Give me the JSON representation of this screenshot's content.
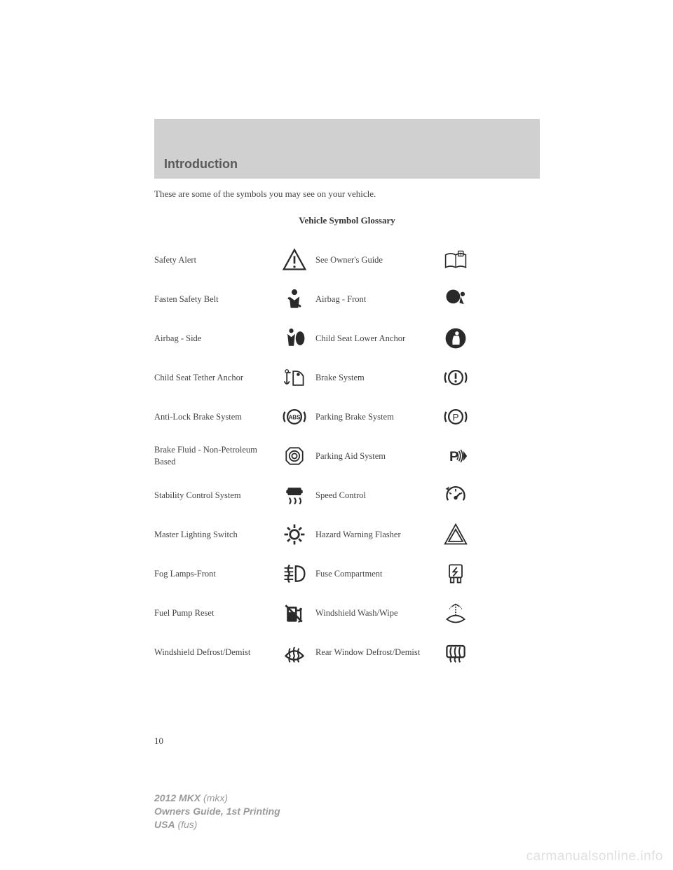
{
  "section_title": "Introduction",
  "intro_text": "These are some of the symbols you may see on your vehicle.",
  "glossary_title": "Vehicle Symbol Glossary",
  "page_number": "10",
  "footer": {
    "model": "2012 MKX",
    "model_code": "(mkx)",
    "line2": "Owners Guide, 1st Printing",
    "line3a": "USA",
    "line3b": "(fus)"
  },
  "watermark": "carmanualsonline.info",
  "icon_color": "#2a2a2a",
  "rows": [
    {
      "left": "Safety Alert",
      "left_icon": "safety-alert",
      "right": "See Owner's Guide",
      "right_icon": "owners-guide"
    },
    {
      "left": "Fasten Safety Belt",
      "left_icon": "seatbelt",
      "right": "Airbag - Front",
      "right_icon": "airbag-front"
    },
    {
      "left": "Airbag - Side",
      "left_icon": "airbag-side",
      "right": "Child Seat Lower Anchor",
      "right_icon": "child-anchor"
    },
    {
      "left": "Child Seat Tether Anchor",
      "left_icon": "tether-anchor",
      "right": "Brake System",
      "right_icon": "brake"
    },
    {
      "left": "Anti-Lock Brake System",
      "left_icon": "abs",
      "right": "Parking Brake System",
      "right_icon": "parking-brake"
    },
    {
      "left": "Brake Fluid - Non-Petroleum Based",
      "left_icon": "brake-fluid",
      "right": "Parking Aid System",
      "right_icon": "parking-aid"
    },
    {
      "left": "Stability Control System",
      "left_icon": "stability",
      "right": "Speed Control",
      "right_icon": "speed-control"
    },
    {
      "left": "Master Lighting Switch",
      "left_icon": "lighting",
      "right": "Hazard Warning Flasher",
      "right_icon": "hazard"
    },
    {
      "left": "Fog Lamps-Front",
      "left_icon": "fog-lamps",
      "right": "Fuse Compartment",
      "right_icon": "fuse"
    },
    {
      "left": "Fuel Pump Reset",
      "left_icon": "fuel-reset",
      "right": "Windshield Wash/Wipe",
      "right_icon": "wash-wipe"
    },
    {
      "left": "Windshield Defrost/Demist",
      "left_icon": "defrost-front",
      "right": "Rear Window Defrost/Demist",
      "right_icon": "defrost-rear"
    }
  ]
}
